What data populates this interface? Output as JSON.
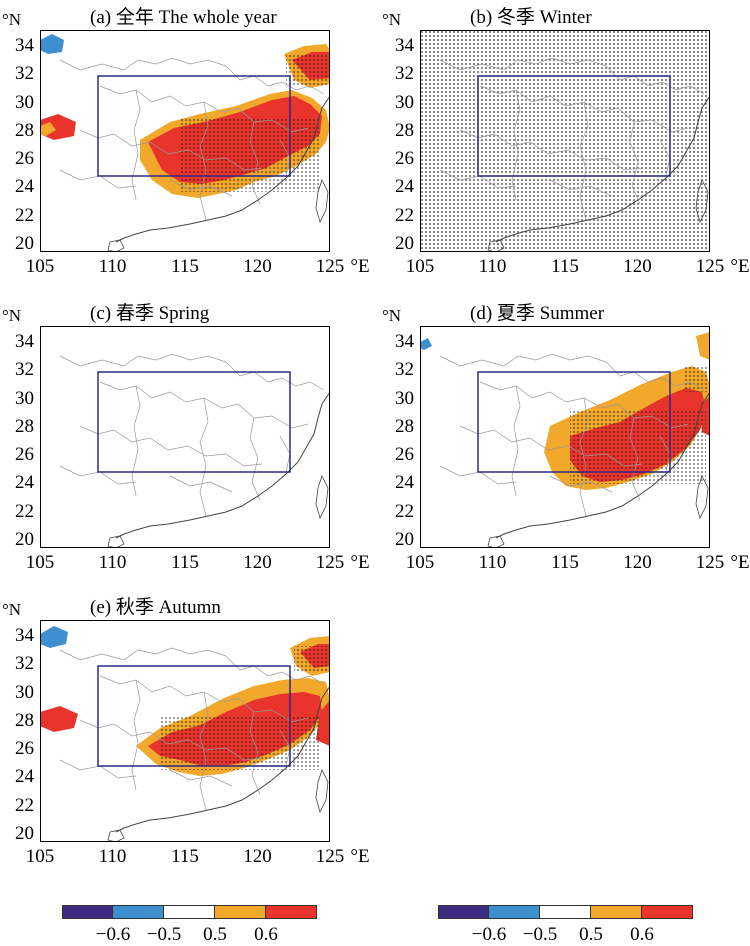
{
  "axes": {
    "lon_ticks": [
      "105",
      "110",
      "115",
      "120",
      "125"
    ],
    "lat_ticks": [
      "20",
      "22",
      "24",
      "26",
      "28",
      "30",
      "32",
      "34"
    ],
    "lon_unit": "°E",
    "lat_unit": "°N"
  },
  "panels": [
    {
      "title": "(a) 全年 The whole year"
    },
    {
      "title": "(b) 冬季 Winter"
    },
    {
      "title": "(c) 春季 Spring"
    },
    {
      "title": "(d) 夏季 Summer"
    },
    {
      "title": "(e) 秋季 Autumn"
    }
  ],
  "colorbar": {
    "labels": [
      "−0.6",
      "−0.5",
      "0.5",
      "0.6"
    ],
    "colors": [
      "#3b2a7d",
      "#3d8fd0",
      "#ffffff",
      "#f2a82a",
      "#e8342c"
    ]
  }
}
